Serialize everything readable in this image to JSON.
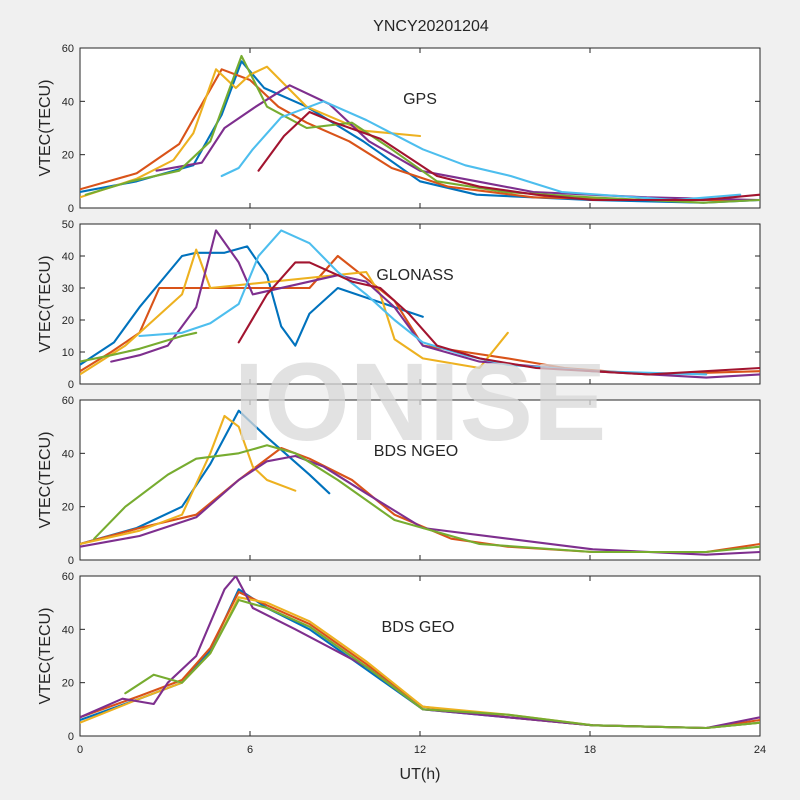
{
  "figure": {
    "title": "YNCY20201204",
    "xlabel": "UT(h)",
    "watermark": "IONISE"
  },
  "colors": [
    "#0072BD",
    "#D95319",
    "#EDB120",
    "#7E2F8E",
    "#77AC30",
    "#4DBEEE",
    "#A2142F"
  ],
  "chart_data": [
    {
      "type": "line",
      "panel_label": "GPS",
      "ylabel": "VTEC(TECU)",
      "xlim": [
        0,
        24
      ],
      "ylim": [
        0,
        60
      ],
      "xticks": [
        0,
        6,
        12,
        18,
        24
      ],
      "yticks": [
        0,
        20,
        40,
        60
      ],
      "show_xticklabels": false,
      "series": [
        {
          "color": "#0072BD",
          "x": [
            0,
            2,
            4,
            5,
            5.7,
            6.5,
            8,
            10,
            12,
            14,
            18,
            22,
            24
          ],
          "y": [
            6,
            10,
            16,
            35,
            55,
            45,
            38,
            25,
            10,
            5,
            3,
            2,
            3
          ]
        },
        {
          "color": "#D95319",
          "x": [
            0,
            2,
            3.5,
            5,
            6,
            7,
            8,
            9.5,
            11,
            13,
            16,
            20,
            24
          ],
          "y": [
            7,
            13,
            24,
            52,
            48,
            38,
            32,
            25,
            15,
            8,
            4,
            3,
            3
          ]
        },
        {
          "color": "#EDB120",
          "x": [
            0,
            2,
            3.3,
            4,
            4.8,
            5.5,
            6,
            6.6,
            8,
            10,
            12
          ],
          "y": [
            4,
            11,
            18,
            28,
            52,
            45,
            50,
            53,
            38,
            29,
            27
          ]
        },
        {
          "color": "#7E2F8E",
          "x": [
            2.7,
            4.3,
            5.1,
            6.2,
            7.4,
            8.8,
            10.2,
            12,
            14,
            16,
            20,
            24
          ],
          "y": [
            14,
            17,
            30,
            38,
            46,
            39,
            25,
            14,
            10,
            6,
            4,
            3
          ]
        },
        {
          "color": "#77AC30",
          "x": [
            0.2,
            1.8,
            3.5,
            4.6,
            5.7,
            6.6,
            8,
            9.6,
            11,
            12.6,
            15,
            18,
            22,
            24
          ],
          "y": [
            5,
            10,
            14,
            25,
            57,
            38,
            30,
            32,
            22,
            10,
            6,
            4,
            2,
            3
          ]
        },
        {
          "color": "#4DBEEE",
          "x": [
            5,
            5.6,
            6.1,
            7.1,
            8.6,
            10.1,
            12.1,
            13.6,
            15.2,
            17,
            21,
            23.3
          ],
          "y": [
            12,
            15,
            22,
            34,
            40,
            33,
            22,
            16,
            12,
            6,
            3,
            5
          ]
        },
        {
          "color": "#A2142F",
          "x": [
            6.3,
            7.2,
            8.1,
            9,
            10.6,
            12.6,
            14.1,
            16.1,
            18.1,
            22,
            24
          ],
          "y": [
            14,
            27,
            36,
            32,
            26,
            12,
            8,
            5,
            3,
            3,
            5
          ]
        }
      ]
    },
    {
      "type": "line",
      "panel_label": "GLONASS",
      "ylabel": "VTEC(TECU)",
      "xlim": [
        0,
        24
      ],
      "ylim": [
        0,
        50
      ],
      "xticks": [
        0,
        6,
        12,
        18,
        24
      ],
      "yticks": [
        0,
        10,
        20,
        30,
        40,
        50
      ],
      "show_xticklabels": false,
      "series": [
        {
          "color": "#0072BD",
          "x": [
            0,
            1.2,
            2.1,
            3.6,
            4.1,
            5.1,
            5.9,
            6.6,
            7.1,
            7.6,
            8.1,
            9.1,
            10.1,
            12.1
          ],
          "y": [
            6,
            13,
            24,
            40,
            41,
            41,
            43,
            34,
            18,
            12,
            22,
            30,
            27,
            21
          ]
        },
        {
          "color": "#D95319",
          "x": [
            0,
            1.1,
            2.1,
            2.8,
            8.1,
            9.1,
            10.1,
            11.1,
            12.1,
            13.6,
            15.1,
            17.1,
            20.1,
            24
          ],
          "y": [
            4,
            10,
            16,
            30,
            30,
            40,
            33,
            26,
            12,
            10,
            8,
            5,
            3,
            4
          ]
        },
        {
          "color": "#EDB120",
          "x": [
            0,
            1.6,
            2.6,
            3.6,
            4.1,
            4.6,
            10.1,
            10.6,
            11.1,
            12.1,
            14.1,
            15.1
          ],
          "y": [
            3,
            12,
            20,
            28,
            42,
            30,
            35,
            28,
            14,
            8,
            5,
            16
          ]
        },
        {
          "color": "#7E2F8E",
          "x": [
            1.1,
            2.1,
            3.1,
            4.1,
            4.8,
            5.6,
            6.1,
            9.1,
            10.1,
            11.1,
            12.1,
            14.1,
            18.1,
            22.1,
            24
          ],
          "y": [
            7,
            9,
            12,
            24,
            48,
            38,
            28,
            34,
            32,
            24,
            12,
            7,
            4,
            2,
            3
          ]
        },
        {
          "color": "#77AC30",
          "x": [
            0,
            1.1,
            2.1,
            3.6,
            4.1
          ],
          "y": [
            7,
            9,
            11,
            15,
            16
          ]
        },
        {
          "color": "#4DBEEE",
          "x": [
            2.1,
            3.6,
            4.6,
            5.6,
            6.3,
            7.1,
            8.1,
            9.1,
            10.1,
            11.1,
            12.1,
            13.6,
            15.1,
            18.1,
            22.1
          ],
          "y": [
            15,
            16,
            19,
            25,
            40,
            48,
            44,
            35,
            28,
            20,
            13,
            9,
            6,
            4,
            3
          ]
        },
        {
          "color": "#A2142F",
          "x": [
            5.6,
            6.6,
            7.6,
            8.1,
            9.6,
            10.6,
            11.6,
            12.6,
            14.1,
            16.1,
            20.1,
            24
          ],
          "y": [
            13,
            28,
            38,
            38,
            32,
            30,
            22,
            12,
            8,
            5,
            3,
            5
          ]
        }
      ]
    },
    {
      "type": "line",
      "panel_label": "BDS NGEO",
      "ylabel": "VTEC(TECU)",
      "xlim": [
        0,
        24
      ],
      "ylim": [
        0,
        60
      ],
      "xticks": [
        0,
        6,
        12,
        18,
        24
      ],
      "yticks": [
        0,
        20,
        40,
        60
      ],
      "show_xticklabels": false,
      "series": [
        {
          "color": "#0072BD",
          "x": [
            0,
            2,
            3.6,
            4.6,
            5.6,
            6.6,
            8.1,
            8.8
          ],
          "y": [
            6,
            12,
            20,
            36,
            56,
            46,
            32,
            25
          ]
        },
        {
          "color": "#D95319",
          "x": [
            0,
            2.1,
            4.1,
            5.6,
            7.1,
            8.1,
            9.6,
            11.1,
            13.1,
            15.1,
            18.1,
            22.1,
            24
          ],
          "y": [
            6,
            12,
            17,
            30,
            42,
            38,
            30,
            17,
            8,
            5,
            3,
            3,
            6
          ]
        },
        {
          "color": "#EDB120",
          "x": [
            0,
            2.1,
            3.6,
            4.6,
            5.1,
            5.6,
            6.1,
            6.6,
            7.6
          ],
          "y": [
            6,
            11,
            17,
            40,
            54,
            50,
            35,
            30,
            26
          ]
        },
        {
          "color": "#7E2F8E",
          "x": [
            0,
            2.1,
            4.1,
            5.6,
            6.6,
            7.6,
            8.6,
            10.1,
            12.1,
            15.1,
            18.1,
            22.1,
            24
          ],
          "y": [
            5,
            9,
            16,
            30,
            37,
            39,
            35,
            25,
            12,
            8,
            4,
            2,
            3
          ]
        },
        {
          "color": "#77AC30",
          "x": [
            0.5,
            1.6,
            3.1,
            4.1,
            5.6,
            6.6,
            7.6,
            9.1,
            11.1,
            14.1,
            18.1,
            22.1,
            24
          ],
          "y": [
            8,
            20,
            32,
            38,
            40,
            43,
            40,
            30,
            15,
            6,
            3,
            3,
            5
          ]
        }
      ]
    },
    {
      "type": "line",
      "panel_label": "BDS GEO",
      "ylabel": "VTEC(TECU)",
      "xlim": [
        0,
        24
      ],
      "ylim": [
        0,
        60
      ],
      "xticks": [
        0,
        6,
        12,
        18,
        24
      ],
      "xticklabels": [
        "0",
        "6",
        "12",
        "18",
        "24"
      ],
      "yticks": [
        0,
        20,
        40,
        60
      ],
      "show_xticklabels": true,
      "series": [
        {
          "color": "#0072BD",
          "x": [
            0,
            2.1,
            3.6,
            4.6,
            5.6,
            6.6,
            8.1,
            10.1,
            12.1,
            15.1,
            18.1,
            22.1,
            24
          ],
          "y": [
            6,
            14,
            20,
            32,
            55,
            48,
            40,
            25,
            10,
            7,
            4,
            3,
            5
          ]
        },
        {
          "color": "#D95319",
          "x": [
            0,
            2.1,
            3.6,
            4.6,
            5.6,
            6.6,
            8.1,
            10.1,
            12.1,
            15.1,
            18.1,
            22.1,
            24
          ],
          "y": [
            7,
            15,
            21,
            33,
            54,
            49,
            42,
            27,
            11,
            7,
            4,
            3,
            6
          ]
        },
        {
          "color": "#EDB120",
          "x": [
            0,
            2.1,
            3.6,
            4.6,
            5.6,
            6.6,
            8.1,
            10.1,
            12.1,
            15.1,
            18.1,
            22.1,
            24
          ],
          "y": [
            5,
            14,
            20,
            31,
            52,
            50,
            43,
            28,
            11,
            8,
            4,
            3,
            5
          ]
        },
        {
          "color": "#7E2F8E",
          "x": [
            0,
            1.5,
            2.6,
            3.1,
            4.1,
            5.1,
            5.5,
            6.1,
            7.6,
            10.1,
            12.1,
            15.1,
            18.1,
            22.1,
            24
          ],
          "y": [
            7,
            14,
            12,
            20,
            30,
            55,
            60,
            48,
            40,
            26,
            10,
            7,
            4,
            3,
            7
          ]
        },
        {
          "color": "#77AC30",
          "x": [
            1.6,
            2.6,
            3.6,
            4.6,
            5.6,
            6.6,
            8.1,
            10.1,
            12.1,
            15.1,
            18.1,
            22.1,
            24
          ],
          "y": [
            16,
            23,
            20,
            31,
            51,
            48,
            41,
            26,
            10,
            8,
            4,
            3,
            5
          ]
        }
      ]
    }
  ]
}
